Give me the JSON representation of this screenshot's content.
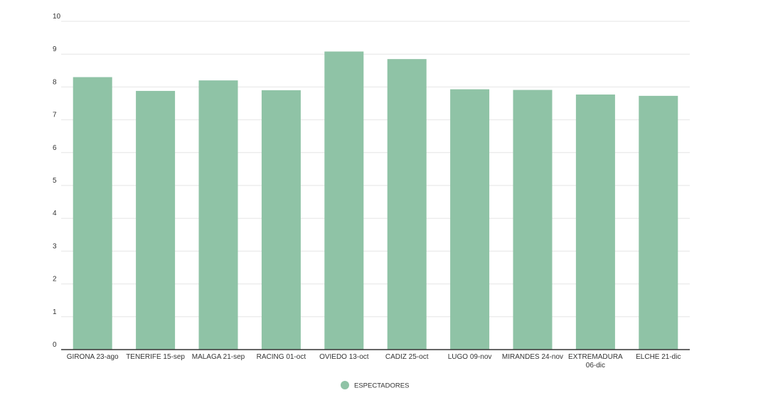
{
  "chart_data": {
    "type": "bar",
    "categories": [
      "GIRONA 23-ago",
      "TENERIFE 15-sep",
      "MALAGA 21-sep",
      "RACING 01-oct",
      "OVIEDO 13-oct",
      "CADIZ 25-oct",
      "LUGO 09-nov",
      "MIRANDES 24-nov",
      "EXTREMADURA 06-dic",
      "ELCHE 21-dic"
    ],
    "series": [
      {
        "name": "ESPECTADORES",
        "values": [
          8.3,
          7.88,
          8.2,
          7.9,
          9.08,
          8.85,
          7.93,
          7.91,
          7.77,
          7.73
        ],
        "color": "#8fc3a6"
      }
    ],
    "yticks": [
      "0",
      "1",
      "2",
      "3",
      "4",
      "5",
      "6",
      "7",
      "8",
      "9",
      "10"
    ],
    "ylim": [
      0,
      10
    ],
    "grid": true,
    "legend_position": "bottom-center",
    "colors": {
      "bar": "#8fc3a6",
      "grid": "#e6e6e6",
      "axis": "#333333",
      "text": "#333333"
    }
  }
}
